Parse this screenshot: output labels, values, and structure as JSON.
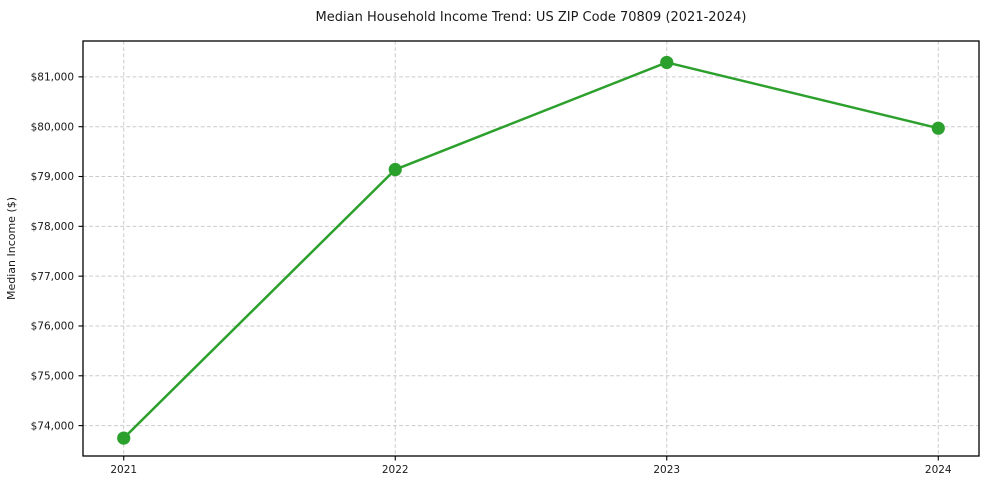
{
  "chart_data": {
    "type": "line",
    "title": "Median Household Income Trend: US ZIP Code 70809 (2021-2024)",
    "xlabel": "",
    "ylabel": "Median Income ($)",
    "x": [
      2021,
      2022,
      2023,
      2024
    ],
    "x_tick_labels": [
      "2021",
      "2022",
      "2023",
      "2024"
    ],
    "series": [
      {
        "name": "Median Household Income",
        "values": [
          73750,
          79140,
          81290,
          79970
        ]
      }
    ],
    "y_ticks": [
      74000,
      75000,
      76000,
      77000,
      78000,
      79000,
      80000,
      81000
    ],
    "y_tick_labels": [
      "$74,000",
      "$75,000",
      "$76,000",
      "$77,000",
      "$78,000",
      "$79,000",
      "$80,000",
      "$81,000"
    ],
    "xlim": [
      2020.85,
      2024.15
    ],
    "ylim": [
      73390,
      81720
    ],
    "grid": true,
    "grid_style": "dashed",
    "legend": "none",
    "colors": {
      "line": "#2ca02c",
      "marker": "#2ca02c",
      "grid": "#cbcbcb",
      "frame": "#000000",
      "text": "#1a1a1a",
      "background": "#ffffff"
    }
  }
}
